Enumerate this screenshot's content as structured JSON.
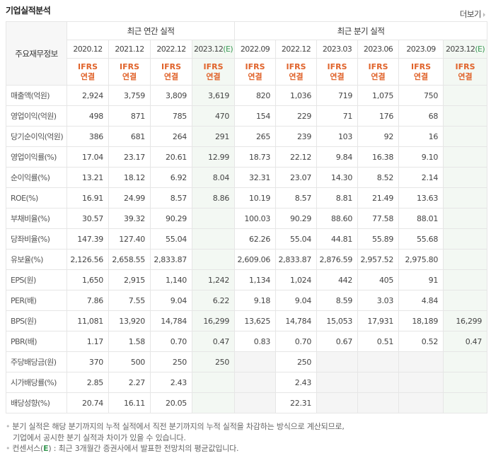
{
  "header": {
    "title": "기업실적분석",
    "more_label": "더보기"
  },
  "table": {
    "row_header": "주요재무정보",
    "group_annual": "최근 연간 실적",
    "group_quarterly": "최근 분기 실적",
    "periods": [
      {
        "date": "2020.12",
        "est": ""
      },
      {
        "date": "2021.12",
        "est": ""
      },
      {
        "date": "2022.12",
        "est": ""
      },
      {
        "date": "2023.12",
        "est": "(E)"
      },
      {
        "date": "2022.09",
        "est": ""
      },
      {
        "date": "2022.12",
        "est": ""
      },
      {
        "date": "2023.03",
        "est": ""
      },
      {
        "date": "2023.06",
        "est": ""
      },
      {
        "date": "2023.09",
        "est": ""
      },
      {
        "date": "2023.12",
        "est": "(E)"
      }
    ],
    "basis_line1": "IFRS",
    "basis_line2": "연결",
    "rows": [
      {
        "label": "매출액(억원)",
        "values": [
          "2,924",
          "3,759",
          "3,809",
          "3,619",
          "820",
          "1,036",
          "719",
          "1,075",
          "750",
          ""
        ]
      },
      {
        "label": "영업이익(억원)",
        "values": [
          "498",
          "871",
          "785",
          "470",
          "154",
          "229",
          "71",
          "176",
          "68",
          ""
        ]
      },
      {
        "label": "당기순이익(억원)",
        "values": [
          "386",
          "681",
          "264",
          "291",
          "265",
          "239",
          "103",
          "92",
          "16",
          ""
        ]
      },
      {
        "label": "영업이익률(%)",
        "values": [
          "17.04",
          "23.17",
          "20.61",
          "12.99",
          "18.73",
          "22.12",
          "9.84",
          "16.38",
          "9.10",
          ""
        ]
      },
      {
        "label": "순이익률(%)",
        "values": [
          "13.21",
          "18.12",
          "6.92",
          "8.04",
          "32.31",
          "23.07",
          "14.30",
          "8.52",
          "2.14",
          ""
        ]
      },
      {
        "label": "ROE(%)",
        "values": [
          "16.91",
          "24.99",
          "8.57",
          "8.86",
          "10.19",
          "8.57",
          "8.81",
          "21.49",
          "13.63",
          ""
        ]
      },
      {
        "label": "부채비율(%)",
        "values": [
          "30.57",
          "39.32",
          "90.29",
          "",
          "100.03",
          "90.29",
          "88.60",
          "77.58",
          "88.01",
          ""
        ]
      },
      {
        "label": "당좌비율(%)",
        "values": [
          "147.39",
          "127.40",
          "55.04",
          "",
          "62.26",
          "55.04",
          "44.81",
          "55.89",
          "55.68",
          ""
        ]
      },
      {
        "label": "유보율(%)",
        "values": [
          "2,126.56",
          "2,658.55",
          "2,833.87",
          "",
          "2,609.06",
          "2,833.87",
          "2,876.59",
          "2,957.52",
          "2,975.80",
          ""
        ]
      },
      {
        "label": "EPS(원)",
        "values": [
          "1,650",
          "2,915",
          "1,140",
          "1,242",
          "1,134",
          "1,024",
          "442",
          "405",
          "91",
          ""
        ]
      },
      {
        "label": "PER(배)",
        "values": [
          "7.86",
          "7.55",
          "9.04",
          "6.22",
          "9.18",
          "9.04",
          "8.59",
          "3.03",
          "4.84",
          ""
        ]
      },
      {
        "label": "BPS(원)",
        "values": [
          "11,081",
          "13,920",
          "14,784",
          "16,299",
          "13,625",
          "14,784",
          "15,053",
          "17,931",
          "18,189",
          "16,299"
        ]
      },
      {
        "label": "PBR(배)",
        "values": [
          "1.17",
          "1.58",
          "0.70",
          "0.47",
          "0.83",
          "0.70",
          "0.67",
          "0.51",
          "0.52",
          "0.47"
        ]
      },
      {
        "label": "주당배당금(원)",
        "values": [
          "370",
          "500",
          "250",
          "250",
          "",
          "250",
          "",
          "",
          "",
          ""
        ]
      },
      {
        "label": "시가배당률(%)",
        "values": [
          "2.85",
          "2.27",
          "2.43",
          "",
          "",
          "2.43",
          "",
          "",
          "",
          ""
        ]
      },
      {
        "label": "배당성향(%)",
        "values": [
          "20.74",
          "16.11",
          "20.05",
          "",
          "",
          "22.31",
          "",
          "",
          "",
          ""
        ]
      }
    ]
  },
  "notes": {
    "note1_line1": "분기 실적은 해당 분기까지의 누적 실적에서 직전 분기까지의 누적 실적을 차감하는 방식으로 계산되므로,",
    "note1_line2": "기업에서 공시한 분기 실적과 차이가 있을 수 있습니다.",
    "note2_pre": "컨센서스(",
    "note2_e": "E",
    "note2_post": ") : 최근 3개월간 증권사에서 발표한 전망치의 평균값입니다."
  },
  "colors": {
    "ifrs": "#e0632b",
    "estimate": "#3a9a55",
    "estimate_bg": "#f3f8f3",
    "empty_bg": "#f5f5f5"
  }
}
